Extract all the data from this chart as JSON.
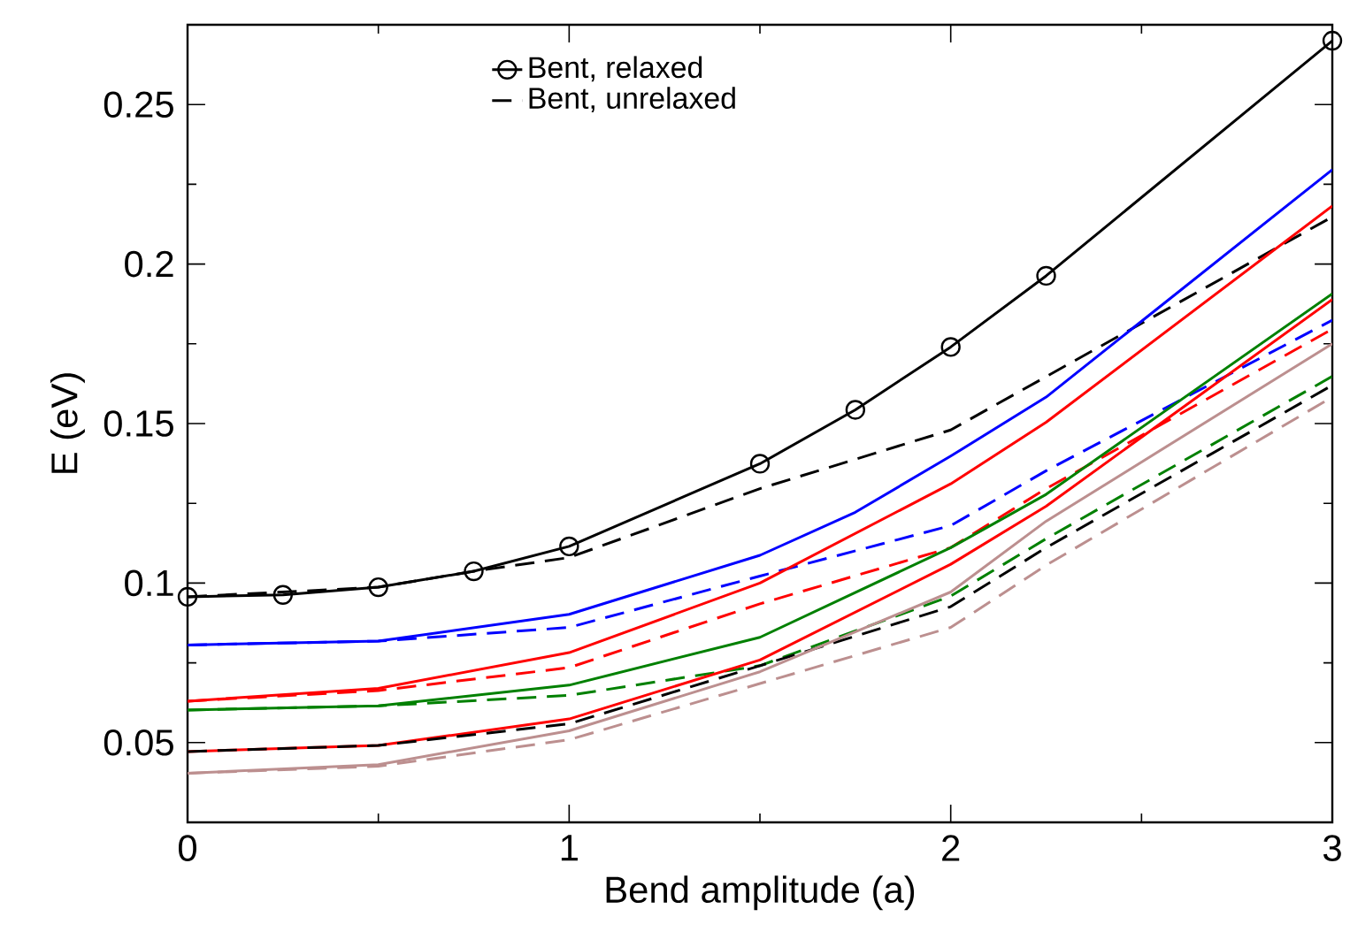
{
  "chart_data": {
    "type": "line",
    "xlabel": "Bend amplitude (a)",
    "ylabel": "E (eV)",
    "xlim": [
      0,
      3
    ],
    "ylim": [
      0.025,
      0.275
    ],
    "xticks": [
      0,
      1,
      2,
      3
    ],
    "yticks": [
      0.05,
      0.1,
      0.15,
      0.2,
      0.25
    ],
    "grid": false,
    "legend": "top",
    "series": [
      {
        "name": "Bent, relaxed",
        "color": "#000000",
        "marker": "circle",
        "line_style": "solid",
        "x": [
          0,
          0.25,
          0.5,
          0.75,
          1,
          1.5,
          1.75,
          2,
          2.25,
          3
        ],
        "values": [
          0.0957,
          0.0963,
          0.0987,
          0.1037,
          0.1115,
          0.1374,
          0.1543,
          0.174,
          0.1963,
          0.27
        ]
      },
      {
        "name": "Bent, unrelaxed",
        "color": "#000000",
        "marker": "none",
        "line_style": "dashed",
        "x": [
          0,
          0.5,
          0.75,
          1,
          1.5,
          2,
          3
        ],
        "values": [
          0.0957,
          0.0987,
          0.1037,
          0.108,
          0.1296,
          0.148,
          0.2148
        ]
      },
      {
        "color": "#0000ff",
        "marker": "none",
        "line_style": "solid",
        "x": [
          0,
          0.5,
          1,
          1.5,
          1.75,
          2,
          2.25,
          3
        ],
        "values": [
          0.0806,
          0.0818,
          0.0902,
          0.1087,
          0.1222,
          0.1398,
          0.1583,
          0.2296
        ]
      },
      {
        "color": "#0000ff",
        "marker": "none",
        "line_style": "dashed",
        "x": [
          0,
          0.5,
          1,
          1.5,
          2,
          2.25,
          3
        ],
        "values": [
          0.0806,
          0.0818,
          0.0861,
          0.1022,
          0.118,
          0.1352,
          0.1824
        ]
      },
      {
        "color": "#ff0000",
        "marker": "none",
        "line_style": "solid",
        "x": [
          0,
          0.5,
          1,
          1.5,
          2,
          2.25,
          3
        ],
        "values": [
          0.063,
          0.067,
          0.0782,
          0.1,
          0.1311,
          0.1504,
          0.2182
        ]
      },
      {
        "color": "#ff0000",
        "marker": "none",
        "line_style": "dashed",
        "x": [
          0,
          0.5,
          1,
          1.5,
          2,
          2.25,
          3
        ],
        "values": [
          0.063,
          0.0663,
          0.0735,
          0.0935,
          0.1111,
          0.1296,
          0.1796
        ]
      },
      {
        "color": "#008000",
        "marker": "none",
        "line_style": "solid",
        "x": [
          0,
          0.5,
          1,
          1.5,
          2,
          2.25,
          3
        ],
        "values": [
          0.0602,
          0.0615,
          0.068,
          0.083,
          0.1111,
          0.1278,
          0.1907
        ]
      },
      {
        "color": "#008000",
        "marker": "none",
        "line_style": "dashed",
        "x": [
          0,
          0.5,
          1,
          1.5,
          2,
          2.25,
          3
        ],
        "values": [
          0.0602,
          0.0615,
          0.0648,
          0.0741,
          0.0959,
          0.1139,
          0.1648
        ]
      },
      {
        "color": "#ff0000",
        "marker": "none",
        "line_style": "solid",
        "x": [
          0,
          0.5,
          1,
          1.5,
          2,
          2.25,
          3
        ],
        "values": [
          0.0472,
          0.0491,
          0.0574,
          0.0759,
          0.1059,
          0.1241,
          0.1889
        ]
      },
      {
        "color": "#000000",
        "marker": "none",
        "line_style": "dashed",
        "x": [
          0,
          0.5,
          1,
          1.5,
          2,
          2.25,
          3
        ],
        "values": [
          0.0472,
          0.0491,
          0.0559,
          0.0741,
          0.0926,
          0.1111,
          0.162
        ]
      },
      {
        "color": "#bc8f8f",
        "marker": "none",
        "line_style": "solid",
        "x": [
          0,
          0.5,
          1,
          1.5,
          2,
          2.25,
          3
        ],
        "values": [
          0.0404,
          0.0431,
          0.0537,
          0.0722,
          0.0972,
          0.1194,
          0.175
        ]
      },
      {
        "color": "#bc8f8f",
        "marker": "none",
        "line_style": "dashed",
        "x": [
          0,
          0.5,
          1,
          1.5,
          2,
          2.25,
          3
        ],
        "values": [
          0.0404,
          0.0426,
          0.0509,
          0.0685,
          0.0861,
          0.1056,
          0.1583
        ]
      }
    ]
  }
}
